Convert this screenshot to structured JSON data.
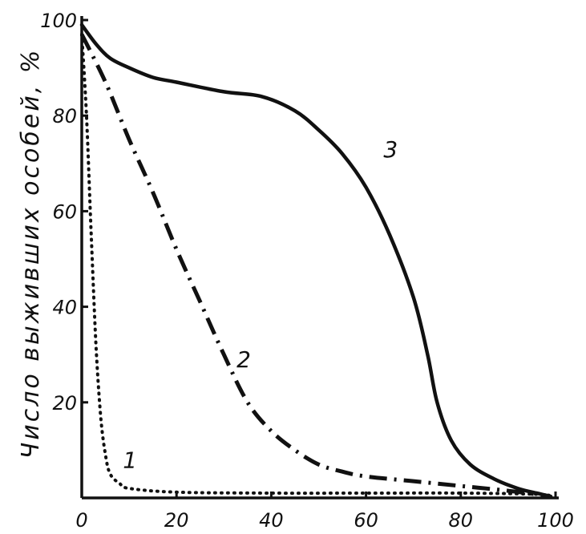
{
  "chart_data": {
    "type": "line",
    "title": "",
    "xlabel": "",
    "ylabel": "Число выживших особей, %",
    "xlim": [
      0,
      100
    ],
    "ylim": [
      0,
      100
    ],
    "x_ticks": [
      "0",
      "20",
      "40",
      "60",
      "80",
      "100"
    ],
    "y_ticks": [
      "20",
      "40",
      "60",
      "80",
      "100"
    ],
    "grid": false,
    "legend": "none",
    "series": [
      {
        "name": "1",
        "style": "dotted",
        "points": [
          [
            0,
            97
          ],
          [
            1,
            80
          ],
          [
            2,
            55
          ],
          [
            3,
            32
          ],
          [
            4,
            17
          ],
          [
            5,
            9
          ],
          [
            6,
            5
          ],
          [
            8,
            3
          ],
          [
            10,
            2
          ],
          [
            20,
            1.2
          ],
          [
            40,
            1
          ],
          [
            60,
            1
          ],
          [
            80,
            1
          ],
          [
            95,
            0.8
          ],
          [
            99,
            0.5
          ]
        ]
      },
      {
        "name": "2",
        "style": "dash-dot",
        "points": [
          [
            0,
            97
          ],
          [
            5,
            87
          ],
          [
            10,
            75
          ],
          [
            15,
            64
          ],
          [
            20,
            52
          ],
          [
            25,
            41
          ],
          [
            30,
            30
          ],
          [
            35,
            20
          ],
          [
            40,
            14
          ],
          [
            45,
            10
          ],
          [
            50,
            7
          ],
          [
            55,
            5.5
          ],
          [
            60,
            4.5
          ],
          [
            70,
            3.5
          ],
          [
            80,
            2.5
          ],
          [
            90,
            1.5
          ],
          [
            98,
            0.5
          ]
        ]
      },
      {
        "name": "3",
        "style": "solid",
        "points": [
          [
            0,
            99
          ],
          [
            3,
            95
          ],
          [
            6,
            92
          ],
          [
            10,
            90
          ],
          [
            15,
            88
          ],
          [
            20,
            87
          ],
          [
            30,
            85
          ],
          [
            38,
            84
          ],
          [
            45,
            81
          ],
          [
            50,
            77
          ],
          [
            55,
            72
          ],
          [
            60,
            65
          ],
          [
            65,
            55
          ],
          [
            70,
            42
          ],
          [
            73,
            30
          ],
          [
            75,
            20
          ],
          [
            78,
            12
          ],
          [
            82,
            7
          ],
          [
            87,
            4
          ],
          [
            92,
            2
          ],
          [
            96,
            1
          ],
          [
            99,
            0.3
          ]
        ]
      }
    ]
  }
}
